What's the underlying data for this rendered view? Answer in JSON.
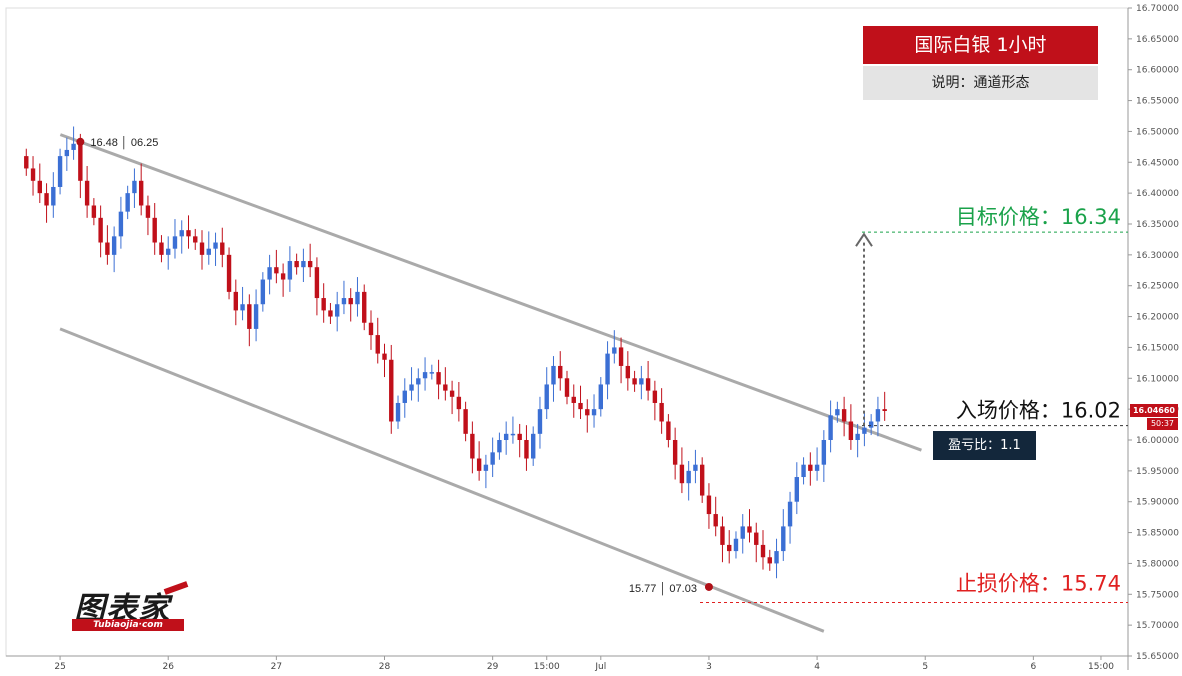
{
  "chart_data": {
    "type": "candlestick",
    "title": "国际白银 1小时",
    "subtitle": "说明：通道形态",
    "y_range": [
      15.65,
      16.7
    ],
    "y_ticks": [
      16.7,
      16.65,
      16.6,
      16.55,
      16.5,
      16.45,
      16.4,
      16.35,
      16.3,
      16.25,
      16.2,
      16.15,
      16.1,
      16.05,
      16.0,
      15.95,
      15.9,
      15.85,
      15.8,
      15.75,
      15.7,
      15.65
    ],
    "y_tick_labels": [
      "16.70000",
      "16.65000",
      "16.60000",
      "16.55000",
      "16.50000",
      "16.45000",
      "16.40000",
      "16.35000",
      "16.30000",
      "16.25000",
      "16.20000",
      "16.15000",
      "16.10000",
      "16.05000",
      "16.00000",
      "15.95000",
      "15.90000",
      "15.85000",
      "15.80000",
      "15.75000",
      "15.70000",
      "15.65000"
    ],
    "x_ticks": [
      {
        "label": "25",
        "t": 5
      },
      {
        "label": "26",
        "t": 21
      },
      {
        "label": "27",
        "t": 37
      },
      {
        "label": "28",
        "t": 53
      },
      {
        "label": "29",
        "t": 69
      },
      {
        "label": "15:00",
        "t": 77
      },
      {
        "label": "Jul",
        "t": 85
      },
      {
        "label": "3",
        "t": 101
      },
      {
        "label": "4",
        "t": 117
      },
      {
        "label": "5",
        "t": 133
      },
      {
        "label": "6",
        "t": 149
      },
      {
        "label": "15:00",
        "t": 159
      }
    ],
    "x_range": [
      -3,
      163
    ],
    "candles_close": [
      16.44,
      16.42,
      16.4,
      16.38,
      16.41,
      16.46,
      16.47,
      16.48,
      16.42,
      16.38,
      16.36,
      16.32,
      16.3,
      16.33,
      16.37,
      16.4,
      16.42,
      16.38,
      16.36,
      16.32,
      16.3,
      16.31,
      16.33,
      16.34,
      16.33,
      16.32,
      16.3,
      16.31,
      16.32,
      16.3,
      16.24,
      16.21,
      16.22,
      16.18,
      16.22,
      16.26,
      16.28,
      16.27,
      16.26,
      16.29,
      16.28,
      16.29,
      16.28,
      16.23,
      16.21,
      16.2,
      16.22,
      16.23,
      16.22,
      16.24,
      16.19,
      16.17,
      16.14,
      16.13,
      16.03,
      16.06,
      16.08,
      16.09,
      16.1,
      16.11,
      16.11,
      16.09,
      16.08,
      16.07,
      16.05,
      16.01,
      15.97,
      15.95,
      15.96,
      15.98,
      16.0,
      16.01,
      16.01,
      16.0,
      15.97,
      16.01,
      16.05,
      16.09,
      16.12,
      16.1,
      16.07,
      16.06,
      16.05,
      16.04,
      16.05,
      16.09,
      16.14,
      16.15,
      16.12,
      16.1,
      16.09,
      16.1,
      16.08,
      16.06,
      16.03,
      16.0,
      15.96,
      15.93,
      15.95,
      15.96,
      15.91,
      15.88,
      15.86,
      15.83,
      15.82,
      15.84,
      15.86,
      15.85,
      15.83,
      15.81,
      15.8,
      15.82,
      15.86,
      15.9,
      15.94,
      15.96,
      15.95,
      15.96,
      16.0,
      16.04,
      16.05,
      16.03,
      16.0,
      16.01,
      16.02,
      16.03,
      16.05,
      16.047
    ],
    "last_price": "16.04660",
    "countdown": "50:37",
    "high_point": {
      "label": "16.48 │ 06.25",
      "t": 8,
      "value": 16.48
    },
    "low_point": {
      "label": "15.77 │ 07.03",
      "t": 101,
      "value": 15.77
    },
    "channel_upper": {
      "from": {
        "t": 8,
        "value": 16.49
      },
      "to": {
        "t": 128,
        "value": 15.99
      }
    },
    "channel_lower": {
      "from": {
        "t": 5,
        "value": 16.18
      },
      "to": {
        "t": 118,
        "value": 15.69
      }
    },
    "entry": {
      "label": "入场价格：16.02",
      "value": 16.02,
      "color": "#111111"
    },
    "target": {
      "label": "目标价格：16.34",
      "value": 16.34,
      "color": "#1aa24a"
    },
    "stop": {
      "label": "止损价格：15.74",
      "value": 15.74,
      "color": "#e02020"
    },
    "ratio_label": "盈亏比：1.1",
    "colors": {
      "up": "#3b6fd4",
      "down": "#c0101a",
      "channel": "#aaaaaa"
    }
  },
  "logo": {
    "cn": "图表家",
    "en": "Tubiaojia·com"
  }
}
